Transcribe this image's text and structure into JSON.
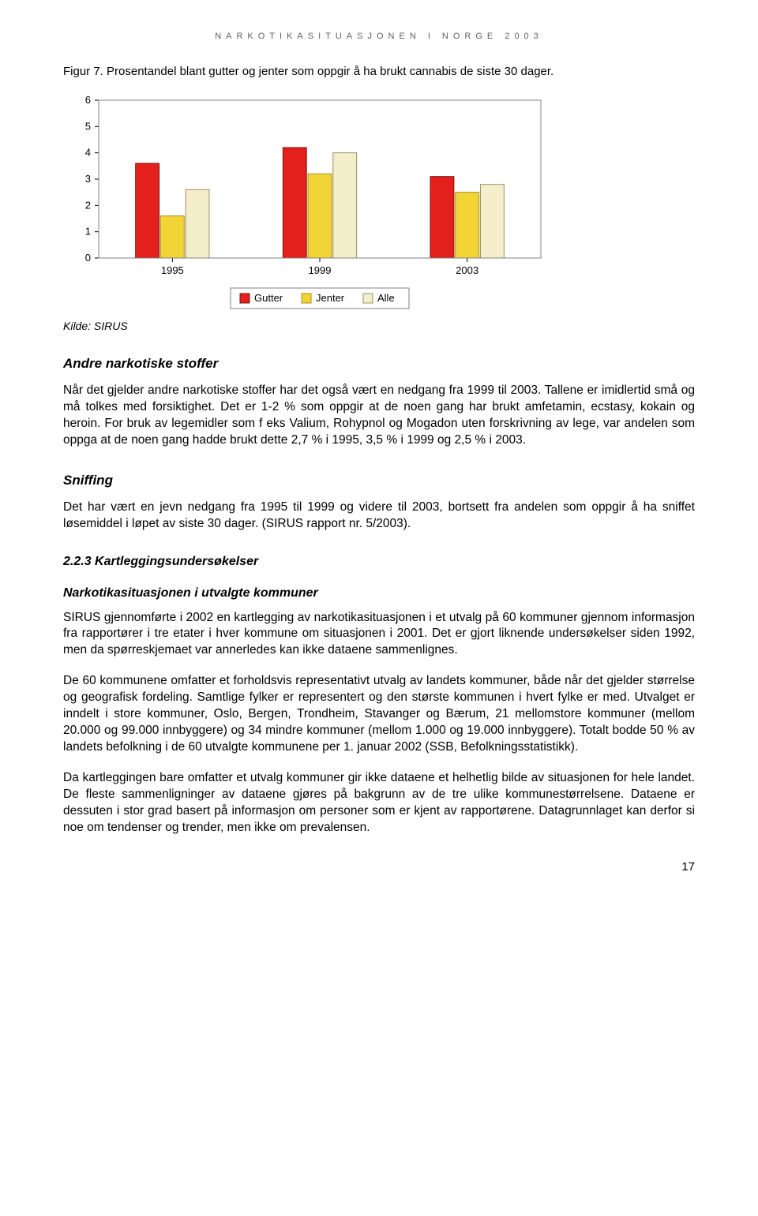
{
  "header": "NARKOTIKASITUASJONEN I NORGE 2003",
  "figure_caption": "Figur 7. Prosentandel blant gutter og jenter som oppgir å ha brukt cannabis de siste 30 dager.",
  "chart": {
    "type": "bar",
    "categories": [
      "1995",
      "1999",
      "2003"
    ],
    "series": [
      {
        "name": "Gutter",
        "color": "#e3201b",
        "border": "#7a1210",
        "values": [
          3.6,
          4.2,
          3.1
        ]
      },
      {
        "name": "Jenter",
        "color": "#f3d437",
        "border": "#a88f1d",
        "values": [
          1.6,
          3.2,
          2.5
        ]
      },
      {
        "name": "Alle",
        "color": "#f5eecb",
        "border": "#9c9064",
        "values": [
          2.6,
          4.0,
          2.8
        ]
      }
    ],
    "ylim": [
      0,
      6
    ],
    "ytick_step": 1,
    "yticks": [
      "0",
      "1",
      "2",
      "3",
      "4",
      "5",
      "6"
    ],
    "plot_bg": "#ffffff",
    "plot_border": "#808080",
    "axis_label_fontsize": 13,
    "bar_width_ratio": 0.16,
    "bar_gap_ratio": 0.01
  },
  "kilde": "Kilde: SIRUS",
  "h2_andre": "Andre narkotiske stoffer",
  "p_andre": "Når det gjelder andre narkotiske stoffer har det også vært en nedgang fra 1999 til 2003. Tallene er imidlertid små og må tolkes med forsiktighet. Det er 1-2 % som oppgir at de noen gang har brukt amfetamin, ecstasy, kokain og heroin.  For bruk av legemidler som f eks Valium, Rohypnol og Mogadon uten forskrivning av lege, var andelen som oppga at de noen gang hadde brukt dette 2,7 % i 1995, 3,5 % i 1999 og 2,5 % i 2003.",
  "h2_sniff": "Sniffing",
  "p_sniff": "Det har vært en jevn nedgang fra 1995 til 1999 og videre til 2003, bortsett fra andelen som oppgir å ha sniffet løsemiddel i løpet av siste 30 dager. (SIRUS rapport nr. 5/2003).",
  "h3_kart": "2.2.3 Kartleggingsundersøkelser",
  "sub_kom": "Narkotikasituasjonen i utvalgte kommuner",
  "p_kom1": "SIRUS gjennomførte i 2002 en kartlegging av narkotikasituasjonen i et utvalg på 60 kommuner gjennom informasjon fra rapportører i tre etater i hver kommune om situasjonen i 2001.  Det er gjort liknende undersøkelser siden 1992, men da spørreskjemaet var annerledes kan ikke dataene sammenlignes.",
  "p_kom2": "De 60 kommunene omfatter et forholdsvis representativt utvalg av landets kommuner, både når det gjelder størrelse og geografisk fordeling. Samtlige fylker er representert og den største kommunen i hvert fylke er med. Utvalget er inndelt i store kommuner, Oslo, Bergen, Trondheim, Stavanger og Bærum, 21 mellomstore kommuner (mellom 20.000 og 99.000 innbyggere) og 34 mindre kommuner (mellom 1.000 og 19.000 innbyggere).  Totalt bodde 50 % av landets befolkning i de 60 utvalgte kommunene per 1. januar 2002 (SSB, Befolkningsstatistikk).",
  "p_kom3": "Da kartleggingen bare omfatter et utvalg kommuner gir ikke dataene et helhetlig bilde av situasjonen for hele landet.  De fleste sammenligninger av dataene gjøres på bakgrunn av de tre ulike kommunestørrelsene. Dataene er dessuten i stor grad basert på informasjon om personer som er kjent av rapportørene. Datagrunnlaget kan derfor si noe om tendenser og trender, men ikke om prevalensen.",
  "page_number": "17"
}
